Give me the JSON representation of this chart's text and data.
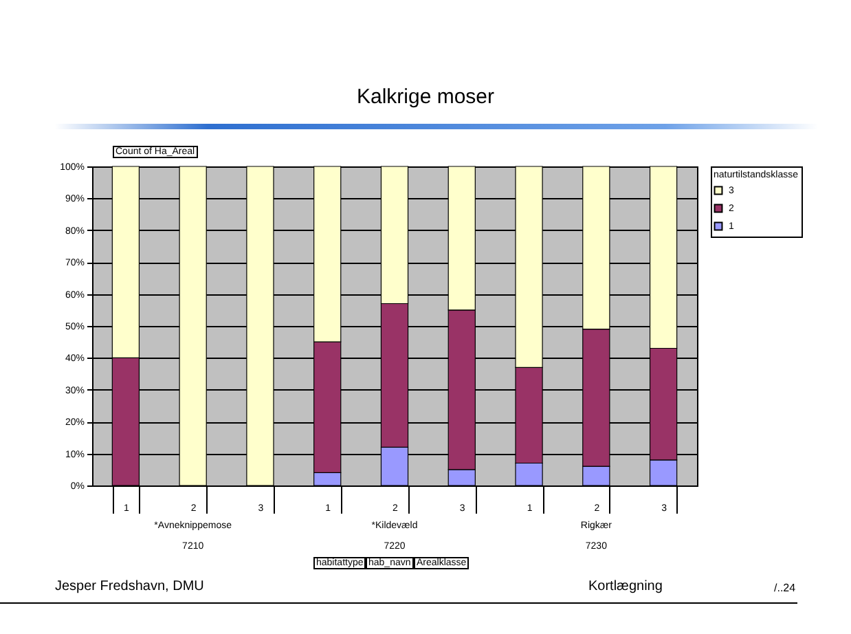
{
  "chart_data": {
    "type": "bar",
    "title": "Kalkrige moser",
    "stacked": true,
    "grid": "y",
    "legend": "right",
    "legend_title": "naturtilstandsklasse",
    "categories": [
      "1",
      "2",
      "3",
      "1",
      "2",
      "3",
      "1",
      "2",
      "3"
    ],
    "ylim": [
      0,
      100
    ],
    "yticks": [
      {
        "value": 0,
        "label": "0%"
      },
      {
        "value": 10,
        "label": "10%"
      },
      {
        "value": 20,
        "label": "20%"
      },
      {
        "value": 30,
        "label": "30%"
      },
      {
        "value": 40,
        "label": "40%"
      },
      {
        "value": 50,
        "label": "50%"
      },
      {
        "value": 60,
        "label": "60%"
      },
      {
        "value": 70,
        "label": "70%"
      },
      {
        "value": 80,
        "label": "80%"
      },
      {
        "value": 90,
        "label": "90%"
      },
      {
        "value": 100,
        "label": "100%"
      }
    ],
    "series": [
      {
        "name": "1",
        "color": "#9999ff",
        "values": [
          0,
          0,
          0,
          4,
          12,
          5,
          7,
          6,
          8
        ]
      },
      {
        "name": "2",
        "color": "#993366",
        "values": [
          40,
          0,
          0,
          41,
          45,
          50,
          30,
          43,
          35
        ]
      },
      {
        "name": "3",
        "color": "#ffffcc",
        "values": [
          60,
          100,
          100,
          55,
          43,
          45,
          63,
          51,
          57
        ]
      }
    ],
    "annotations": [
      "Count of Ha_Areal",
      "*Avneknippemose",
      "7210",
      "*Kildevæld",
      "7220",
      "Rigkær",
      "7230",
      "habitattype",
      "hab_navn",
      "Arealklasse",
      "Jesper Fredshavn, DMU",
      "Kortlægning",
      "/..24"
    ]
  }
}
